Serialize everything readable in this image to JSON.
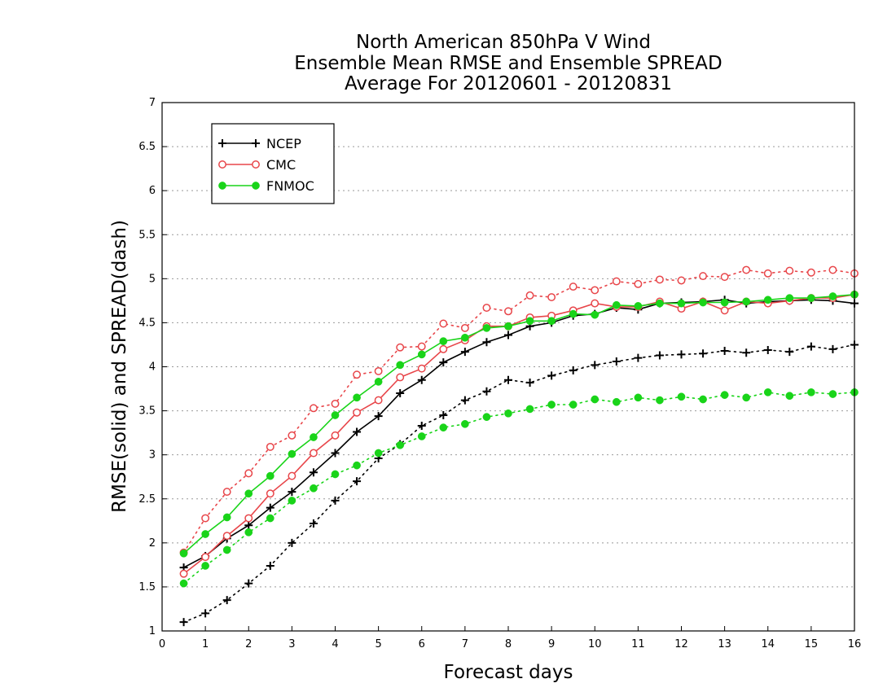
{
  "chart_data": {
    "type": "line",
    "title": [
      "North American 850hPa V Wind",
      "Ensemble Mean RMSE and Ensemble SPREAD",
      "Average For 20120601 - 20120831"
    ],
    "xlabel": "Forecast days",
    "ylabel": "RMSE(solid) and SPREAD(dash)",
    "xlim": [
      0,
      16
    ],
    "ylim": [
      1,
      7
    ],
    "xticks": [
      "0",
      "1",
      "2",
      "3",
      "4",
      "5",
      "6",
      "7",
      "8",
      "9",
      "10",
      "11",
      "12",
      "13",
      "14",
      "15",
      "16"
    ],
    "yticks": [
      "1",
      "1.5",
      "2",
      "2.5",
      "3",
      "3.5",
      "4",
      "4.5",
      "5",
      "5.5",
      "6",
      "6.5",
      "7"
    ],
    "grid": "horizontal dotted",
    "legend_position": "top-left",
    "x": [
      0.5,
      1,
      1.5,
      2,
      2.5,
      3,
      3.5,
      4,
      4.5,
      5,
      5.5,
      6,
      6.5,
      7,
      7.5,
      8,
      8.5,
      9,
      9.5,
      10,
      10.5,
      11,
      11.5,
      12,
      12.5,
      13,
      13.5,
      14,
      14.5,
      15,
      15.5,
      16
    ],
    "series": [
      {
        "name": "NCEP",
        "color": "#000000",
        "marker": "plus",
        "rmse": [
          1.72,
          1.85,
          2.05,
          2.2,
          2.4,
          2.58,
          2.8,
          3.02,
          3.26,
          3.44,
          3.7,
          3.85,
          4.05,
          4.17,
          4.28,
          4.36,
          4.46,
          4.5,
          4.58,
          4.6,
          4.67,
          4.65,
          4.72,
          4.73,
          4.74,
          4.76,
          4.72,
          4.74,
          4.75,
          4.76,
          4.75,
          4.72
        ],
        "spread": [
          1.1,
          1.2,
          1.35,
          1.54,
          1.74,
          2.0,
          2.22,
          2.48,
          2.7,
          2.96,
          3.12,
          3.33,
          3.45,
          3.62,
          3.72,
          3.85,
          3.82,
          3.9,
          3.96,
          4.02,
          4.06,
          4.1,
          4.13,
          4.14,
          4.15,
          4.18,
          4.16,
          4.19,
          4.17,
          4.23,
          4.2,
          4.25
        ]
      },
      {
        "name": "CMC",
        "color": "#e8464a",
        "marker": "open-circle",
        "rmse": [
          1.65,
          1.84,
          2.08,
          2.28,
          2.56,
          2.76,
          3.02,
          3.22,
          3.48,
          3.62,
          3.88,
          3.98,
          4.2,
          4.3,
          4.46,
          4.46,
          4.56,
          4.58,
          4.64,
          4.72,
          4.68,
          4.68,
          4.74,
          4.66,
          4.74,
          4.64,
          4.74,
          4.72,
          4.75,
          4.78,
          4.78,
          4.82
        ],
        "spread": [
          1.89,
          2.28,
          2.58,
          2.79,
          3.09,
          3.22,
          3.53,
          3.58,
          3.91,
          3.95,
          4.22,
          4.23,
          4.49,
          4.44,
          4.67,
          4.63,
          4.81,
          4.79,
          4.91,
          4.87,
          4.97,
          4.94,
          4.99,
          4.98,
          5.03,
          5.02,
          5.1,
          5.06,
          5.09,
          5.07,
          5.1,
          5.06
        ]
      },
      {
        "name": "FNMOC",
        "color": "#19d419",
        "marker": "filled-circle",
        "rmse": [
          1.88,
          2.1,
          2.29,
          2.56,
          2.76,
          3.01,
          3.2,
          3.45,
          3.65,
          3.83,
          4.02,
          4.14,
          4.29,
          4.33,
          4.44,
          4.46,
          4.52,
          4.52,
          4.6,
          4.59,
          4.7,
          4.69,
          4.72,
          4.72,
          4.73,
          4.73,
          4.74,
          4.76,
          4.78,
          4.78,
          4.8,
          4.82
        ],
        "spread": [
          1.54,
          1.74,
          1.92,
          2.12,
          2.28,
          2.48,
          2.62,
          2.78,
          2.88,
          3.02,
          3.11,
          3.21,
          3.31,
          3.35,
          3.43,
          3.47,
          3.52,
          3.57,
          3.57,
          3.63,
          3.6,
          3.65,
          3.62,
          3.66,
          3.63,
          3.68,
          3.65,
          3.71,
          3.67,
          3.71,
          3.69,
          3.71
        ]
      }
    ]
  }
}
